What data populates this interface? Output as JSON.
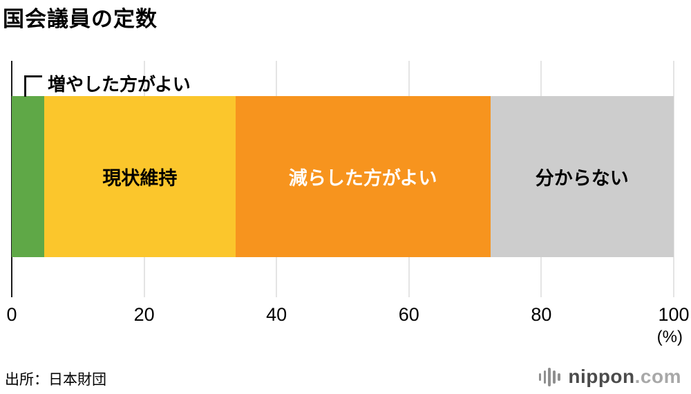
{
  "title": "国会議員の定数",
  "source": "出所：日本財団",
  "logo": {
    "name": "nippon",
    "suffix": ".com"
  },
  "chart_data": {
    "type": "bar",
    "orientation": "horizontal-stacked",
    "title": "国会議員の定数",
    "unit": "(%)",
    "xlim": [
      0,
      100
    ],
    "x_ticks": [
      0,
      20,
      40,
      60,
      80,
      100
    ],
    "grid": true,
    "segments": [
      {
        "label": "増やした方がよい",
        "value": 4.9,
        "color": "#5fa847",
        "text_color": "#000000",
        "label_position": "callout"
      },
      {
        "label": "現状維持",
        "value": 28.9,
        "color": "#fbc62c",
        "text_color": "#000000",
        "label_position": "inside"
      },
      {
        "label": "減らした方がよい",
        "value": 38.5,
        "color": "#f7941e",
        "text_color": "#ffffff",
        "label_position": "inside"
      },
      {
        "label": "分からない",
        "value": 27.7,
        "color": "#cdcdcd",
        "text_color": "#000000",
        "label_position": "inside"
      }
    ]
  }
}
